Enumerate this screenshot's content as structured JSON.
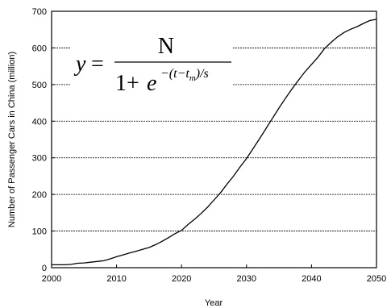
{
  "chart_data": {
    "type": "line",
    "title": "",
    "xlabel": "Year",
    "ylabel": "Number of Passenger Cars in China (million)",
    "xlim": [
      2000,
      2050
    ],
    "ylim": [
      0,
      700
    ],
    "xticks": [
      "2000",
      "2010",
      "2020",
      "2030",
      "2040",
      "2050"
    ],
    "yticks": [
      "0",
      "100",
      "200",
      "300",
      "400",
      "500",
      "600",
      "700"
    ],
    "grid": "horizontal dashed",
    "formula": {
      "lhs": "y",
      "equals": "=",
      "numerator": "N",
      "denominator_base": "1+",
      "e": "e",
      "exponent": "−(t−t",
      "exponent_sub": "m",
      "exponent_tail": ")/s"
    },
    "series": [
      {
        "x": [
          2000,
          2002,
          2003,
          2004,
          2005,
          2006,
          2007,
          2008,
          2009,
          2010,
          2011,
          2012,
          2013,
          2014,
          2015,
          2016,
          2017,
          2018,
          2019,
          2020,
          2021,
          2022,
          2023,
          2024,
          2025,
          2026,
          2027,
          2028,
          2029,
          2030,
          2031,
          2032,
          2033,
          2034,
          2035,
          2036,
          2037,
          2038,
          2039,
          2040,
          2041,
          2042,
          2043,
          2044,
          2045,
          2046,
          2047,
          2048,
          2049,
          2050
        ],
        "values": [
          8,
          8,
          9,
          12,
          13,
          15,
          17,
          19,
          24,
          30,
          35,
          40,
          45,
          50,
          55,
          63,
          72,
          82,
          93,
          102,
          118,
          132,
          148,
          165,
          185,
          205,
          228,
          250,
          275,
          298,
          325,
          352,
          380,
          408,
          436,
          463,
          488,
          512,
          535,
          555,
          575,
          598,
          615,
          630,
          642,
          651,
          658,
          667,
          675,
          678
        ]
      }
    ]
  }
}
